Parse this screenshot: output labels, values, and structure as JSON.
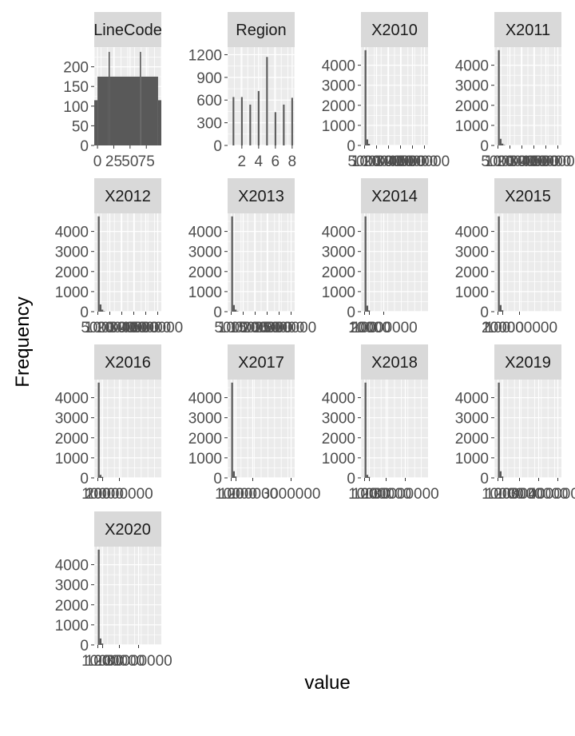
{
  "chart_data": {
    "type": "histogram-facets",
    "xlabel": "value",
    "ylabel": "Frequency",
    "colors": {
      "bar": "#595959",
      "panel": "#ebebeb",
      "strip": "#d9d9d9",
      "grid": "#ffffff",
      "tick_text": "#4d4d4d"
    },
    "grid": true,
    "panels": [
      {
        "title": "LineCode",
        "ylim": [
          0,
          250
        ],
        "yticks": [
          0,
          50,
          100,
          150,
          200
        ],
        "ytick_labels": [
          "0",
          "50",
          "100",
          "150",
          "200"
        ],
        "xlim": [
          -5,
          98
        ],
        "xticks": [
          0,
          25,
          50,
          75
        ],
        "xtick_labels": [
          "0",
          "25",
          "50",
          "75"
        ],
        "bins": [
          {
            "x0": -5,
            "x1": 0,
            "count": 115
          },
          {
            "x0": 0,
            "x1": 17,
            "count": 175
          },
          {
            "x0": 17,
            "x1": 19,
            "count": 238
          },
          {
            "x0": 19,
            "x1": 65,
            "count": 175
          },
          {
            "x0": 65,
            "x1": 67,
            "count": 238
          },
          {
            "x0": 67,
            "x1": 93,
            "count": 175
          },
          {
            "x0": 93,
            "x1": 98,
            "count": 115
          }
        ]
      },
      {
        "title": "Region",
        "ylim": [
          0,
          1300
        ],
        "yticks": [
          0,
          300,
          600,
          900,
          1200
        ],
        "ytick_labels": [
          "0",
          "300",
          "600",
          "900",
          "1200"
        ],
        "xlim": [
          0.3,
          8.3
        ],
        "xticks": [
          2,
          4,
          6,
          8
        ],
        "xtick_labels": [
          "2",
          "4",
          "6",
          "8"
        ],
        "bins": [
          {
            "x0": 0.9,
            "x1": 1.1,
            "count": 640
          },
          {
            "x0": 1.9,
            "x1": 2.1,
            "count": 640
          },
          {
            "x0": 2.9,
            "x1": 3.1,
            "count": 540
          },
          {
            "x0": 3.9,
            "x1": 4.1,
            "count": 720
          },
          {
            "x0": 4.9,
            "x1": 5.1,
            "count": 1170
          },
          {
            "x0": 5.9,
            "x1": 6.1,
            "count": 440
          },
          {
            "x0": 6.9,
            "x1": 7.1,
            "count": 540
          },
          {
            "x0": 7.9,
            "x1": 8.1,
            "count": 630
          }
        ]
      },
      {
        "title": "X2010",
        "ylim": [
          0,
          4900
        ],
        "yticks": [
          0,
          1000,
          2000,
          3000,
          4000
        ],
        "ytick_labels": [
          "0",
          "1000",
          "2000",
          "3000",
          "4000"
        ],
        "xlim": [
          -6,
          106
        ],
        "xticks": [
          0,
          20,
          40,
          60,
          80,
          100
        ],
        "xtick_labels": [
          "5000",
          "100000",
          "200000",
          "300000",
          "400000",
          "500000"
        ],
        "bins": [
          {
            "x0": 0,
            "x1": 3,
            "count": 4750
          },
          {
            "x0": 3,
            "x1": 6,
            "count": 300
          },
          {
            "x0": 6,
            "x1": 9,
            "count": 80
          }
        ]
      },
      {
        "title": "X2011",
        "ylim": [
          0,
          4900
        ],
        "yticks": [
          0,
          1000,
          2000,
          3000,
          4000
        ],
        "ytick_labels": [
          "0",
          "1000",
          "2000",
          "3000",
          "4000"
        ],
        "xlim": [
          -6,
          106
        ],
        "xticks": [
          0,
          20,
          40,
          60,
          80,
          100
        ],
        "xtick_labels": [
          "5000",
          "100000",
          "200000",
          "300000",
          "400000",
          "500000"
        ],
        "bins": [
          {
            "x0": 0,
            "x1": 3,
            "count": 4750
          },
          {
            "x0": 3,
            "x1": 6,
            "count": 330
          },
          {
            "x0": 6,
            "x1": 9,
            "count": 90
          },
          {
            "x0": 9,
            "x1": 12,
            "count": 20
          }
        ]
      },
      {
        "title": "X2012",
        "ylim": [
          0,
          4900
        ],
        "yticks": [
          0,
          1000,
          2000,
          3000,
          4000
        ],
        "ytick_labels": [
          "0",
          "1000",
          "2000",
          "3000",
          "4000"
        ],
        "xlim": [
          -6,
          106
        ],
        "xticks": [
          0,
          20,
          40,
          60,
          80,
          100
        ],
        "xtick_labels": [
          "5000",
          "100000",
          "200000",
          "300000",
          "400000",
          "500000"
        ],
        "bins": [
          {
            "x0": 0,
            "x1": 3,
            "count": 4750
          },
          {
            "x0": 3,
            "x1": 6,
            "count": 360
          },
          {
            "x0": 6,
            "x1": 9,
            "count": 100
          },
          {
            "x0": 9,
            "x1": 12,
            "count": 20
          }
        ]
      },
      {
        "title": "X2013",
        "ylim": [
          0,
          4900
        ],
        "yticks": [
          0,
          1000,
          2000,
          3000,
          4000
        ],
        "ytick_labels": [
          "0",
          "1000",
          "2000",
          "3000",
          "4000"
        ],
        "xlim": [
          -6,
          106
        ],
        "xticks": [
          0,
          20,
          40,
          60,
          80,
          100
        ],
        "xtick_labels": [
          "5000",
          "100000",
          "150000",
          "200000",
          "250000",
          "300000"
        ],
        "bins": [
          {
            "x0": 0,
            "x1": 3,
            "count": 4750
          },
          {
            "x0": 3,
            "x1": 6,
            "count": 330
          },
          {
            "x0": 6,
            "x1": 9,
            "count": 100
          },
          {
            "x0": 9,
            "x1": 12,
            "count": 20
          }
        ]
      },
      {
        "title": "X2014",
        "ylim": [
          0,
          4900
        ],
        "yticks": [
          0,
          1000,
          2000,
          3000,
          4000
        ],
        "ytick_labels": [
          "0",
          "1000",
          "2000",
          "3000",
          "4000"
        ],
        "xlim": [
          -6,
          106
        ],
        "xticks": [
          0,
          8,
          32
        ],
        "xtick_labels": [
          "100",
          "10000",
          "20000000"
        ],
        "bins": [
          {
            "x0": 0,
            "x1": 3,
            "count": 4750
          },
          {
            "x0": 3,
            "x1": 6,
            "count": 300
          },
          {
            "x0": 6,
            "x1": 9,
            "count": 60
          }
        ]
      },
      {
        "title": "X2015",
        "ylim": [
          0,
          4900
        ],
        "yticks": [
          0,
          1000,
          2000,
          3000,
          4000
        ],
        "ytick_labels": [
          "0",
          "1000",
          "2000",
          "3000",
          "4000"
        ],
        "xlim": [
          -6,
          106
        ],
        "xticks": [
          0,
          8,
          36
        ],
        "xtick_labels": [
          "100",
          "10000",
          "200000000"
        ],
        "bins": [
          {
            "x0": 0,
            "x1": 3,
            "count": 4750
          },
          {
            "x0": 3,
            "x1": 6,
            "count": 330
          },
          {
            "x0": 6,
            "x1": 9,
            "count": 70
          }
        ]
      },
      {
        "title": "X2016",
        "ylim": [
          0,
          4900
        ],
        "yticks": [
          0,
          1000,
          2000,
          3000,
          4000
        ],
        "ytick_labels": [
          "0",
          "1000",
          "2000",
          "3000",
          "4000"
        ],
        "xlim": [
          -6,
          106
        ],
        "xticks": [
          0,
          8,
          36
        ],
        "xtick_labels": [
          "100",
          "10000",
          "20000000"
        ],
        "bins": [
          {
            "x0": 0,
            "x1": 3,
            "count": 4750
          },
          {
            "x0": 3,
            "x1": 6,
            "count": 150
          },
          {
            "x0": 6,
            "x1": 9,
            "count": 50
          }
        ]
      },
      {
        "title": "X2017",
        "ylim": [
          0,
          4900
        ],
        "yticks": [
          0,
          1000,
          2000,
          3000,
          4000
        ],
        "ytick_labels": [
          "0",
          "1000",
          "2000",
          "3000",
          "4000"
        ],
        "xlim": [
          -6,
          106
        ],
        "xticks": [
          0,
          8,
          36,
          100
        ],
        "xtick_labels": [
          "100",
          "10000",
          "200000",
          "3000000"
        ],
        "bins": [
          {
            "x0": 0,
            "x1": 3,
            "count": 4750
          },
          {
            "x0": 3,
            "x1": 6,
            "count": 330
          },
          {
            "x0": 6,
            "x1": 9,
            "count": 70
          }
        ]
      },
      {
        "title": "X2018",
        "ylim": [
          0,
          4900
        ],
        "yticks": [
          0,
          1000,
          2000,
          3000,
          4000
        ],
        "ytick_labels": [
          "0",
          "1000",
          "2000",
          "3000",
          "4000"
        ],
        "xlim": [
          -6,
          106
        ],
        "xticks": [
          0,
          8,
          36,
          68
        ],
        "xtick_labels": [
          "100",
          "10000",
          "200000",
          "30000000"
        ],
        "bins": [
          {
            "x0": 0,
            "x1": 3,
            "count": 4750
          },
          {
            "x0": 3,
            "x1": 6,
            "count": 150
          },
          {
            "x0": 6,
            "x1": 9,
            "count": 50
          }
        ]
      },
      {
        "title": "X2019",
        "ylim": [
          0,
          4900
        ],
        "yticks": [
          0,
          1000,
          2000,
          3000,
          4000
        ],
        "ytick_labels": [
          "0",
          "1000",
          "2000",
          "3000",
          "4000"
        ],
        "xlim": [
          -6,
          106
        ],
        "xticks": [
          0,
          8,
          36,
          68,
          100
        ],
        "xtick_labels": [
          "100",
          "10000",
          "200000",
          "3000000",
          "4000000"
        ],
        "bins": [
          {
            "x0": 0,
            "x1": 3,
            "count": 4750
          },
          {
            "x0": 3,
            "x1": 6,
            "count": 330
          },
          {
            "x0": 6,
            "x1": 9,
            "count": 70
          }
        ]
      },
      {
        "title": "X2020",
        "ylim": [
          0,
          4900
        ],
        "yticks": [
          0,
          1000,
          2000,
          3000,
          4000
        ],
        "ytick_labels": [
          "0",
          "1000",
          "2000",
          "3000",
          "4000"
        ],
        "xlim": [
          -6,
          106
        ],
        "xticks": [
          0,
          8,
          36,
          68
        ],
        "xtick_labels": [
          "100",
          "10000",
          "200000",
          "30000000"
        ],
        "bins": [
          {
            "x0": 0,
            "x1": 3,
            "count": 4750
          },
          {
            "x0": 3,
            "x1": 6,
            "count": 320
          },
          {
            "x0": 6,
            "x1": 9,
            "count": 70
          }
        ]
      }
    ]
  }
}
